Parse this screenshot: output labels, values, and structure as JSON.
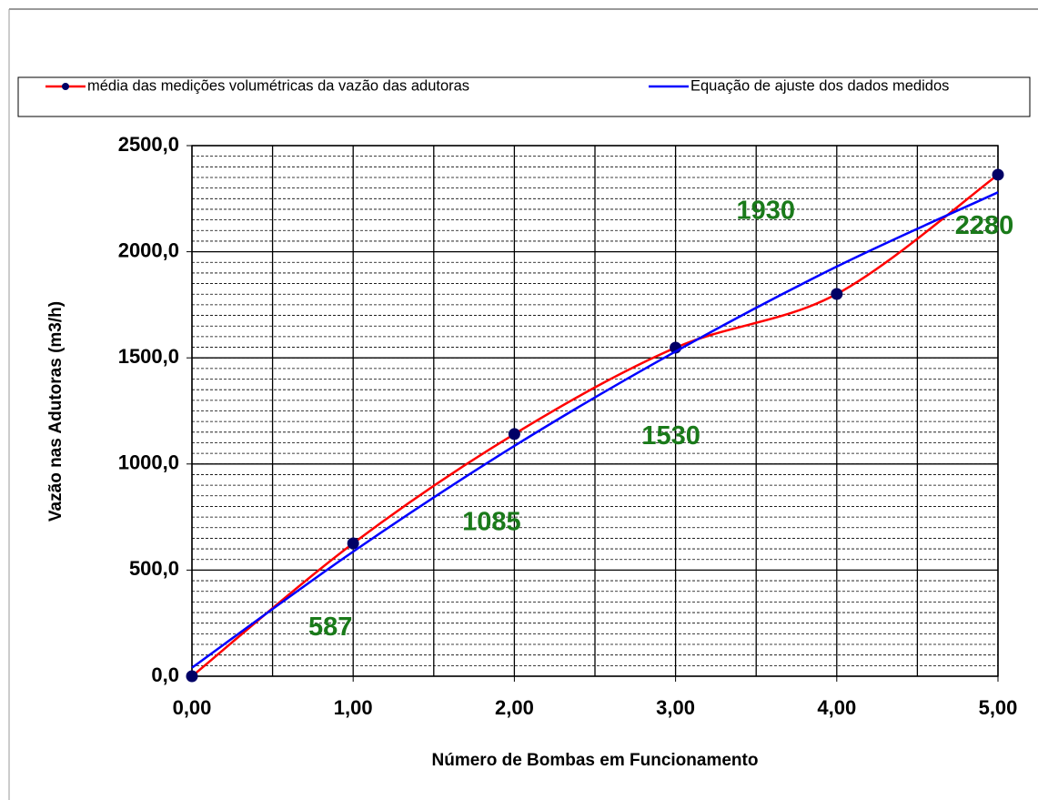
{
  "chart_data": {
    "type": "line",
    "x_label": "Número de Bombas em Funcionamento",
    "y_label": "Vazão nas Adutoras (m3/h)",
    "x": [
      0,
      1,
      2,
      3,
      4,
      5
    ],
    "series": [
      {
        "name": "média das medições volumétricas da vazão das adutoras",
        "color": "#ff0000",
        "marker_color": "#000066",
        "values": [
          0,
          626,
          1141,
          1548,
          1801,
          2363
        ]
      },
      {
        "name": "Equação de ajuste dos dados medidos",
        "color": "#0000ff",
        "values": [
          40,
          587,
          1085,
          1530,
          1930,
          2280
        ],
        "value_labels": [
          null,
          "587",
          "1085",
          "1530",
          "1930",
          "2280"
        ],
        "label_color": "#1a7a1a"
      }
    ],
    "xlim": [
      0,
      5
    ],
    "xticks": [
      {
        "value": 0,
        "label": "0,00"
      },
      {
        "value": 1,
        "label": "1,00"
      },
      {
        "value": 2,
        "label": "2,00"
      },
      {
        "value": 3,
        "label": "3,00"
      },
      {
        "value": 4,
        "label": "4,00"
      },
      {
        "value": 5,
        "label": "5,00"
      }
    ],
    "ylim": [
      0,
      2500
    ],
    "yticks": [
      {
        "value": 0,
        "label": "0,0"
      },
      {
        "value": 500,
        "label": "500,0"
      },
      {
        "value": 1000,
        "label": "1000,0"
      },
      {
        "value": 1500,
        "label": "1500,0"
      },
      {
        "value": 2000,
        "label": "2000,0"
      },
      {
        "value": 2500,
        "label": "2500,0"
      }
    ],
    "grid": true,
    "legend": "top"
  }
}
